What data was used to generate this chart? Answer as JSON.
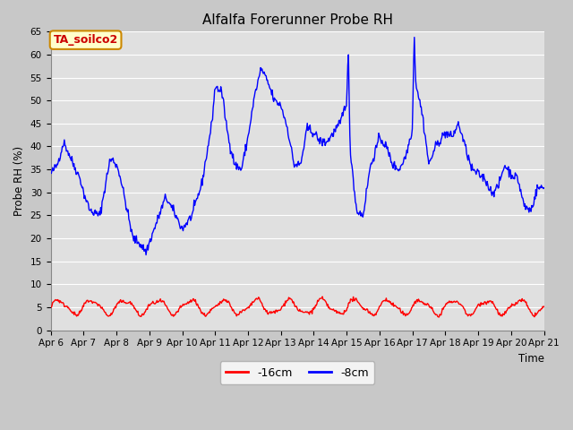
{
  "title": "Alfalfa Forerunner Probe RH",
  "xlabel": "Time",
  "ylabel": "Probe RH (%)",
  "ylim": [
    0,
    65
  ],
  "yticks": [
    0,
    5,
    10,
    15,
    20,
    25,
    30,
    35,
    40,
    45,
    50,
    55,
    60,
    65
  ],
  "fig_bg_color": "#c8c8c8",
  "plot_bg_color": "#e0e0e0",
  "legend_label_16cm": "-16cm",
  "legend_label_8cm": "-8cm",
  "line_color_16cm": "#ff0000",
  "line_color_8cm": "#0000ff",
  "annotation_text": "TA_soilco2",
  "annotation_bg": "#ffffcc",
  "annotation_border": "#cc8800",
  "annotation_text_color": "#cc0000",
  "xtick_labels": [
    "Apr 6",
    "Apr 7",
    "Apr 8",
    "Apr 9",
    "Apr 10",
    "Apr 11",
    "Apr 12",
    "Apr 13",
    "Apr 14",
    "Apr 15",
    "Apr 16",
    "Apr 17",
    "Apr 18",
    "Apr 19",
    "Apr 20",
    "Apr 21"
  ]
}
